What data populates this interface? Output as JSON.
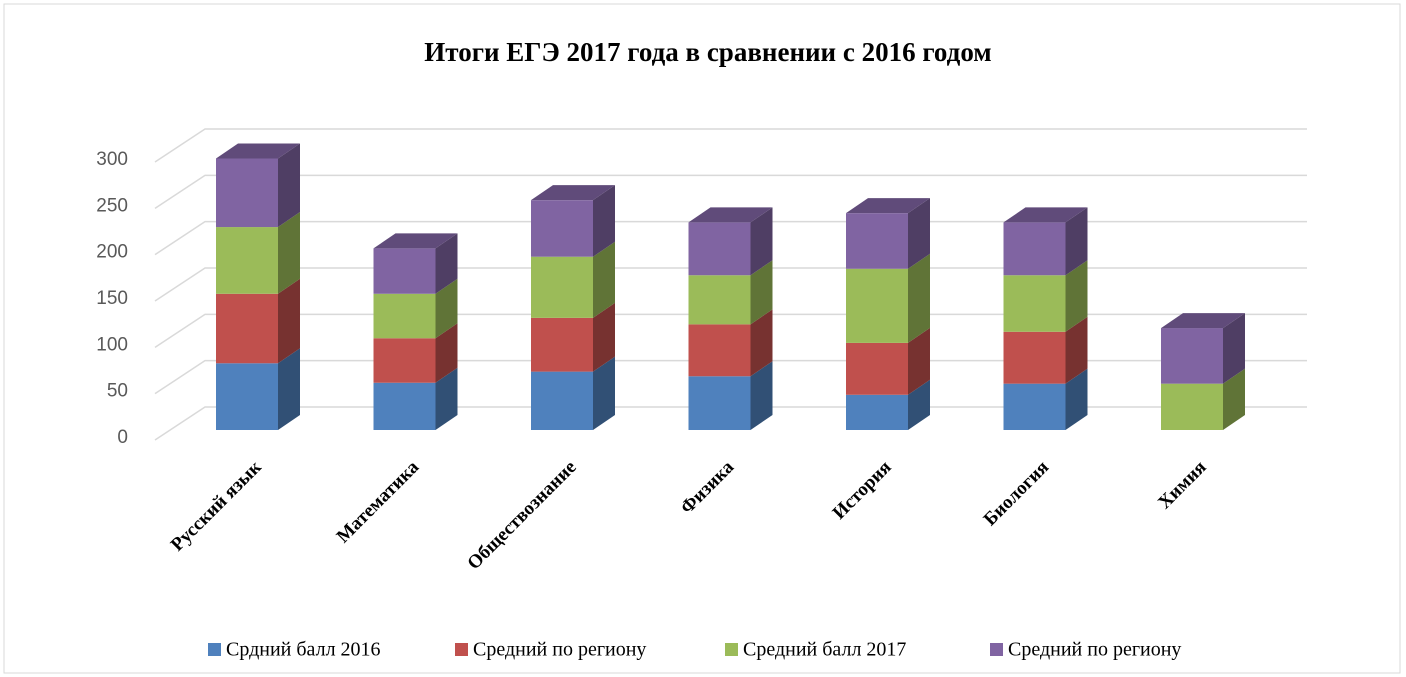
{
  "chart_data": {
    "type": "bar3d_stacked",
    "title": "Итоги ЕГЭ 2017 года в сравнении с 2016 годом",
    "categories": [
      "Русский язык",
      "Математика",
      "Обществознание",
      "Физика",
      "История",
      "Биология",
      "Химия"
    ],
    "series": [
      {
        "name": "Срдний балл 2016",
        "color": "#4f81bd",
        "values": [
          72,
          51,
          63,
          58,
          38,
          50,
          0
        ]
      },
      {
        "name": "Средний по региону",
        "color": "#c0504d",
        "values": [
          75,
          48,
          58,
          56,
          56,
          56,
          0
        ]
      },
      {
        "name": "Средний балл 2017",
        "color": "#9bbb59",
        "values": [
          72,
          48,
          66,
          53,
          80,
          61,
          50
        ]
      },
      {
        "name": "Средний по региону",
        "color": "#8064a2",
        "values": [
          74,
          49,
          61,
          57,
          60,
          57,
          60
        ]
      }
    ],
    "ylim": [
      0,
      300
    ],
    "yticks": [
      0,
      50,
      100,
      150,
      200,
      250,
      300
    ],
    "grid": true,
    "legend": "bottom"
  }
}
